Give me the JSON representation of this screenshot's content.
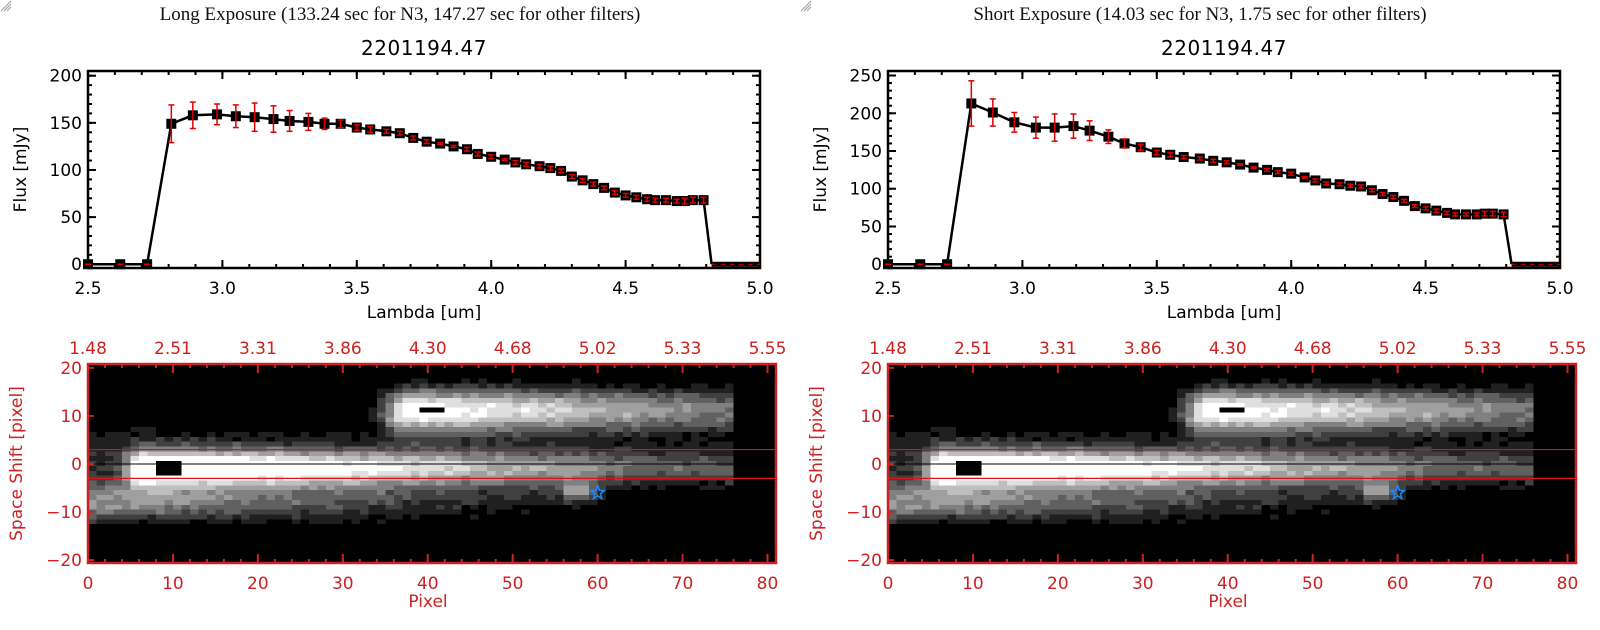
{
  "chart_data": [
    {
      "type": "line",
      "panel": "left",
      "panel_title": "Long Exposure (133.24 sec for N3, 147.27 sec for other filters)",
      "title": "2201194.47",
      "xlabel": "Lambda [um]",
      "ylabel": "Flux [mJy]",
      "xlim": [
        2.5,
        5.0
      ],
      "ylim": [
        -4,
        205
      ],
      "x_ticks": [
        2.5,
        3.0,
        3.5,
        4.0,
        4.5,
        5.0
      ],
      "x_tick_labels": [
        "2.5",
        "3.0",
        "3.5",
        "4.0",
        "4.5",
        "5.0"
      ],
      "y_ticks": [
        0,
        50,
        100,
        150,
        200
      ],
      "y_tick_labels": [
        "0",
        "50",
        "100",
        "150",
        "200"
      ],
      "grid": false,
      "series": [
        {
          "name": "flux",
          "x": [
            2.5,
            2.62,
            2.72,
            2.81,
            2.89,
            2.98,
            3.05,
            3.12,
            3.19,
            3.25,
            3.32,
            3.38,
            3.44,
            3.5,
            3.55,
            3.61,
            3.66,
            3.71,
            3.76,
            3.81,
            3.86,
            3.91,
            3.95,
            4.0,
            4.05,
            4.09,
            4.13,
            4.18,
            4.22,
            4.26,
            4.3,
            4.34,
            4.38,
            4.42,
            4.46,
            4.5,
            4.54,
            4.58,
            4.61,
            4.65,
            4.69,
            4.72,
            4.75,
            4.79
          ],
          "y": [
            0,
            0,
            0,
            149,
            158,
            159,
            157,
            156,
            154,
            152,
            151,
            149,
            149,
            145,
            143,
            141,
            139,
            134,
            130,
            128,
            125,
            122,
            117,
            114,
            111,
            108,
            106,
            104,
            102,
            99,
            93,
            89,
            85,
            81,
            76,
            73,
            71,
            69,
            68,
            68,
            67,
            67,
            68,
            68
          ],
          "yerr": [
            0,
            0,
            0,
            20,
            14,
            11,
            12,
            15,
            14,
            11,
            9,
            6,
            4,
            3,
            3,
            2,
            2,
            2,
            2,
            1,
            1,
            2,
            2,
            2,
            1,
            2,
            2,
            2,
            2,
            2,
            2,
            2,
            2,
            2,
            2,
            2,
            2,
            2,
            2,
            2,
            2,
            3,
            3,
            3
          ]
        }
      ],
      "tail": {
        "x_drop": 4.82,
        "x_end": 5.0,
        "y": 0
      }
    },
    {
      "type": "line",
      "panel": "right",
      "panel_title": "Short Exposure (14.03 sec for N3, 1.75 sec for other filters)",
      "title": "2201194.47",
      "xlabel": "Lambda [um]",
      "ylabel": "Flux [mJy]",
      "xlim": [
        2.5,
        5.0
      ],
      "ylim": [
        -5,
        256
      ],
      "x_ticks": [
        2.5,
        3.0,
        3.5,
        4.0,
        4.5,
        5.0
      ],
      "x_tick_labels": [
        "2.5",
        "3.0",
        "3.5",
        "4.0",
        "4.5",
        "5.0"
      ],
      "y_ticks": [
        0,
        50,
        100,
        150,
        200,
        250
      ],
      "y_tick_labels": [
        "0",
        "50",
        "100",
        "150",
        "200",
        "250"
      ],
      "grid": false,
      "series": [
        {
          "name": "flux",
          "x": [
            2.5,
            2.62,
            2.72,
            2.81,
            2.89,
            2.97,
            3.05,
            3.12,
            3.19,
            3.25,
            3.32,
            3.38,
            3.44,
            3.5,
            3.55,
            3.6,
            3.66,
            3.71,
            3.76,
            3.81,
            3.86,
            3.91,
            3.95,
            4.0,
            4.05,
            4.09,
            4.13,
            4.18,
            4.22,
            4.26,
            4.3,
            4.34,
            4.38,
            4.42,
            4.46,
            4.5,
            4.54,
            4.58,
            4.61,
            4.65,
            4.69,
            4.72,
            4.75,
            4.79
          ],
          "y": [
            0,
            0,
            0,
            213,
            201,
            188,
            181,
            181,
            183,
            177,
            169,
            160,
            155,
            148,
            145,
            142,
            140,
            137,
            135,
            132,
            128,
            125,
            122,
            120,
            115,
            111,
            107,
            106,
            104,
            103,
            98,
            93,
            89,
            84,
            77,
            74,
            71,
            68,
            66,
            66,
            66,
            67,
            67,
            66
          ],
          "yerr": [
            0,
            0,
            0,
            30,
            18,
            13,
            14,
            18,
            16,
            13,
            9,
            6,
            4,
            3,
            3,
            2,
            2,
            2,
            2,
            1,
            1,
            2,
            2,
            2,
            1,
            2,
            2,
            2,
            2,
            2,
            2,
            2,
            2,
            2,
            2,
            2,
            2,
            2,
            2,
            2,
            2,
            3,
            3,
            3
          ]
        }
      ],
      "tail": {
        "x_drop": 4.82,
        "x_end": 5.0,
        "y": 0
      }
    },
    {
      "type": "heatmap",
      "panel": "left",
      "xlabel": "Pixel",
      "ylabel": "Space Shift [pixel]",
      "xlim": [
        0,
        81
      ],
      "ylim": [
        -20.6,
        20.8
      ],
      "x_ticks": [
        0,
        10,
        20,
        30,
        40,
        50,
        60,
        70,
        80
      ],
      "x_tick_labels": [
        "0",
        "10",
        "20",
        "30",
        "40",
        "50",
        "60",
        "70",
        "80"
      ],
      "top_tick_labels": [
        "1.48",
        "2.51",
        "3.31",
        "3.86",
        "4.30",
        "4.68",
        "5.02",
        "5.33",
        "5.55"
      ],
      "y_ticks": [
        -20,
        -10,
        0,
        10,
        20
      ],
      "y_tick_labels": [
        "−20",
        "−10",
        "0",
        "10",
        "20"
      ],
      "aperture_lines": [
        3,
        -3
      ],
      "center_line": 0,
      "marker": {
        "shape": "star",
        "x": 60,
        "y": -6,
        "color": "#2288ee"
      },
      "sources": [
        {
          "x0": 9,
          "y0": -1,
          "brightness": 1.0
        },
        {
          "x0": 40,
          "y0": 11,
          "brightness": 0.95
        }
      ]
    },
    {
      "type": "heatmap",
      "panel": "right",
      "xlabel": "Pixel",
      "ylabel": "Space Shift [pixel]",
      "xlim": [
        0,
        81
      ],
      "ylim": [
        -20.6,
        20.8
      ],
      "x_ticks": [
        0,
        10,
        20,
        30,
        40,
        50,
        60,
        70,
        80
      ],
      "x_tick_labels": [
        "0",
        "10",
        "20",
        "30",
        "40",
        "50",
        "60",
        "70",
        "80"
      ],
      "top_tick_labels": [
        "1.48",
        "2.51",
        "3.31",
        "3.86",
        "4.30",
        "4.68",
        "5.02",
        "5.33",
        "5.55"
      ],
      "y_ticks": [
        -20,
        -10,
        0,
        10,
        20
      ],
      "y_tick_labels": [
        "−20",
        "−10",
        "0",
        "10",
        "20"
      ],
      "aperture_lines": [
        3,
        -3
      ],
      "center_line": 0,
      "marker": {
        "shape": "star",
        "x": 60,
        "y": -6,
        "color": "#2288ee"
      },
      "sources": [
        {
          "x0": 9,
          "y0": -1,
          "brightness": 1.0
        },
        {
          "x0": 40,
          "y0": 11,
          "brightness": 0.95
        }
      ]
    }
  ],
  "colors": {
    "axis": "#000000",
    "data_line": "#000000",
    "marker": "#000000",
    "errorbar": "#e00000",
    "image_axis": "#cc2222",
    "aperture_line": "#dd1111"
  },
  "panels": {
    "left": {
      "panel_title": "Long Exposure (133.24 sec for N3, 147.27 sec for other filters)",
      "plot_title": "2201194.47"
    },
    "right": {
      "panel_title": "Short Exposure (14.03 sec for N3, 1.75 sec for other filters)",
      "plot_title": "2201194.47"
    }
  }
}
